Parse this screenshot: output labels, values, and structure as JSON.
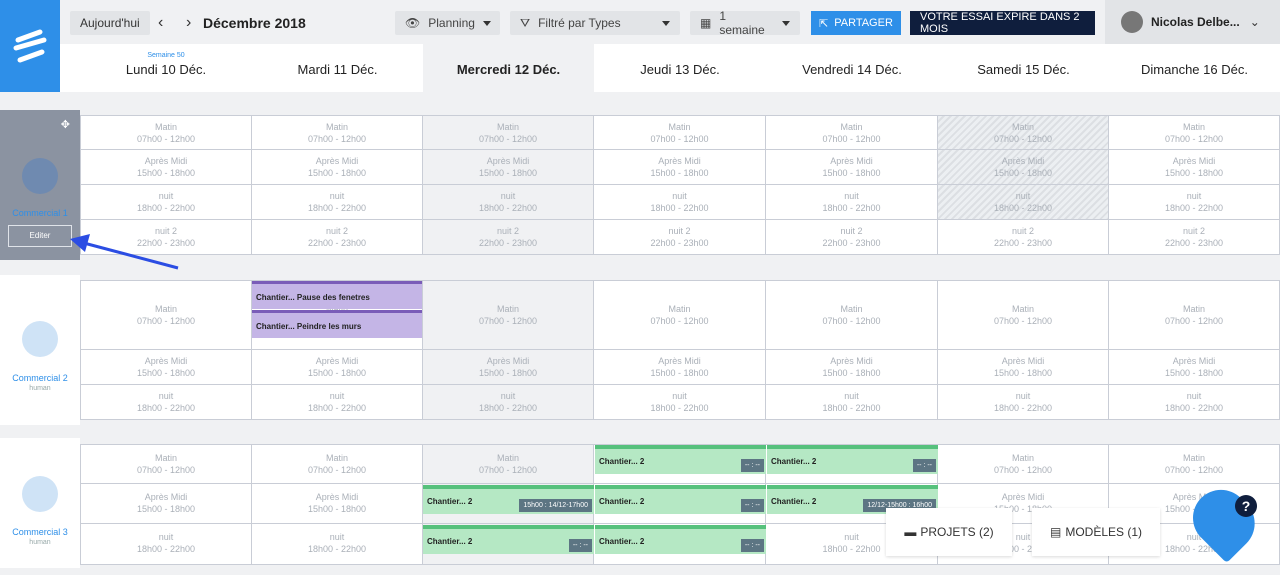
{
  "header": {
    "today_btn": "Aujourd'hui",
    "month": "Décembre 2018",
    "view": "Planning",
    "filter": "Filtré par Types",
    "range": "1 semaine",
    "share": "PARTAGER",
    "trial": "VOTRE ESSAI EXPIRE DANS 2 MOIS",
    "user": "Nicolas Delbe..."
  },
  "days": {
    "week_label": "Semaine 50",
    "list": [
      "Lundi 10 Déc.",
      "Mardi 11 Déc.",
      "Mercredi 12 Déc.",
      "Jeudi 13 Déc.",
      "Vendredi 14 Déc.",
      "Samedi 15 Déc.",
      "Dimanche 16 Déc."
    ]
  },
  "slots": {
    "matin": [
      "Matin",
      "07h00 - 12h00"
    ],
    "apres": [
      "Après Midi",
      "15h00 - 18h00"
    ],
    "nuit": [
      "nuit",
      "18h00 - 22h00"
    ],
    "nuit2": [
      "nuit 2",
      "22h00 - 23h00"
    ]
  },
  "people": [
    {
      "name": "Commercial 1",
      "sub": "",
      "edit": "Editer"
    },
    {
      "name": "Commercial 2",
      "sub": "human"
    },
    {
      "name": "Commercial 3",
      "sub": "human"
    }
  ],
  "events": {
    "e1": "Chantier... Pause des fenetres",
    "e2": "Chantier... Peindre les murs",
    "g": "Chantier... 2",
    "tag_dash": "-- : --",
    "tag_wed": "15h00 : 14/12-17h00",
    "tag_fri": "12/12-15h00 : 16h00"
  },
  "footer": {
    "projects": "PROJETS (2)",
    "models": "MODÈLES (1)",
    "help": "?"
  },
  "colors": {
    "accent": "#2e8fe8",
    "purple": "#c4b5e6",
    "green": "#b5e8c4"
  }
}
